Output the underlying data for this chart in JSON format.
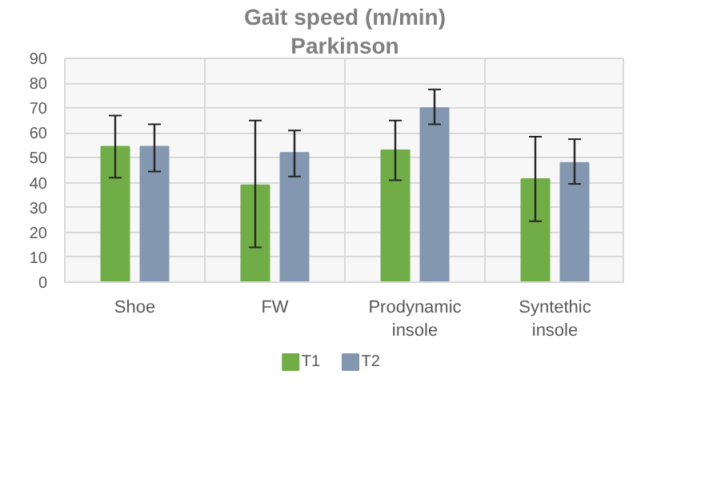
{
  "chart_data": {
    "type": "bar",
    "title": "Gait speed (m/min)",
    "subtitle": "Parkinson",
    "categories": [
      "Shoe",
      "FW",
      "Prodynamic insole",
      "Syntethic insole"
    ],
    "series": [
      {
        "name": "T1",
        "color": "#70ad47",
        "values": [
          54.5,
          39,
          53,
          41.5
        ],
        "errors": [
          [
            42,
            67
          ],
          [
            14,
            65
          ],
          [
            41,
            65
          ],
          [
            24.5,
            58.5
          ]
        ]
      },
      {
        "name": "T2",
        "color": "#8497b0",
        "values": [
          54.5,
          52,
          70,
          48
        ],
        "errors": [
          [
            44.5,
            63.5
          ],
          [
            42.5,
            61
          ],
          [
            63.5,
            77.5
          ],
          [
            39.5,
            57.5
          ]
        ]
      }
    ],
    "ylim": [
      0,
      90
    ],
    "yticks": [
      0,
      10,
      20,
      30,
      40,
      50,
      60,
      70,
      80,
      90
    ],
    "grid": true,
    "legend": "bottom"
  }
}
